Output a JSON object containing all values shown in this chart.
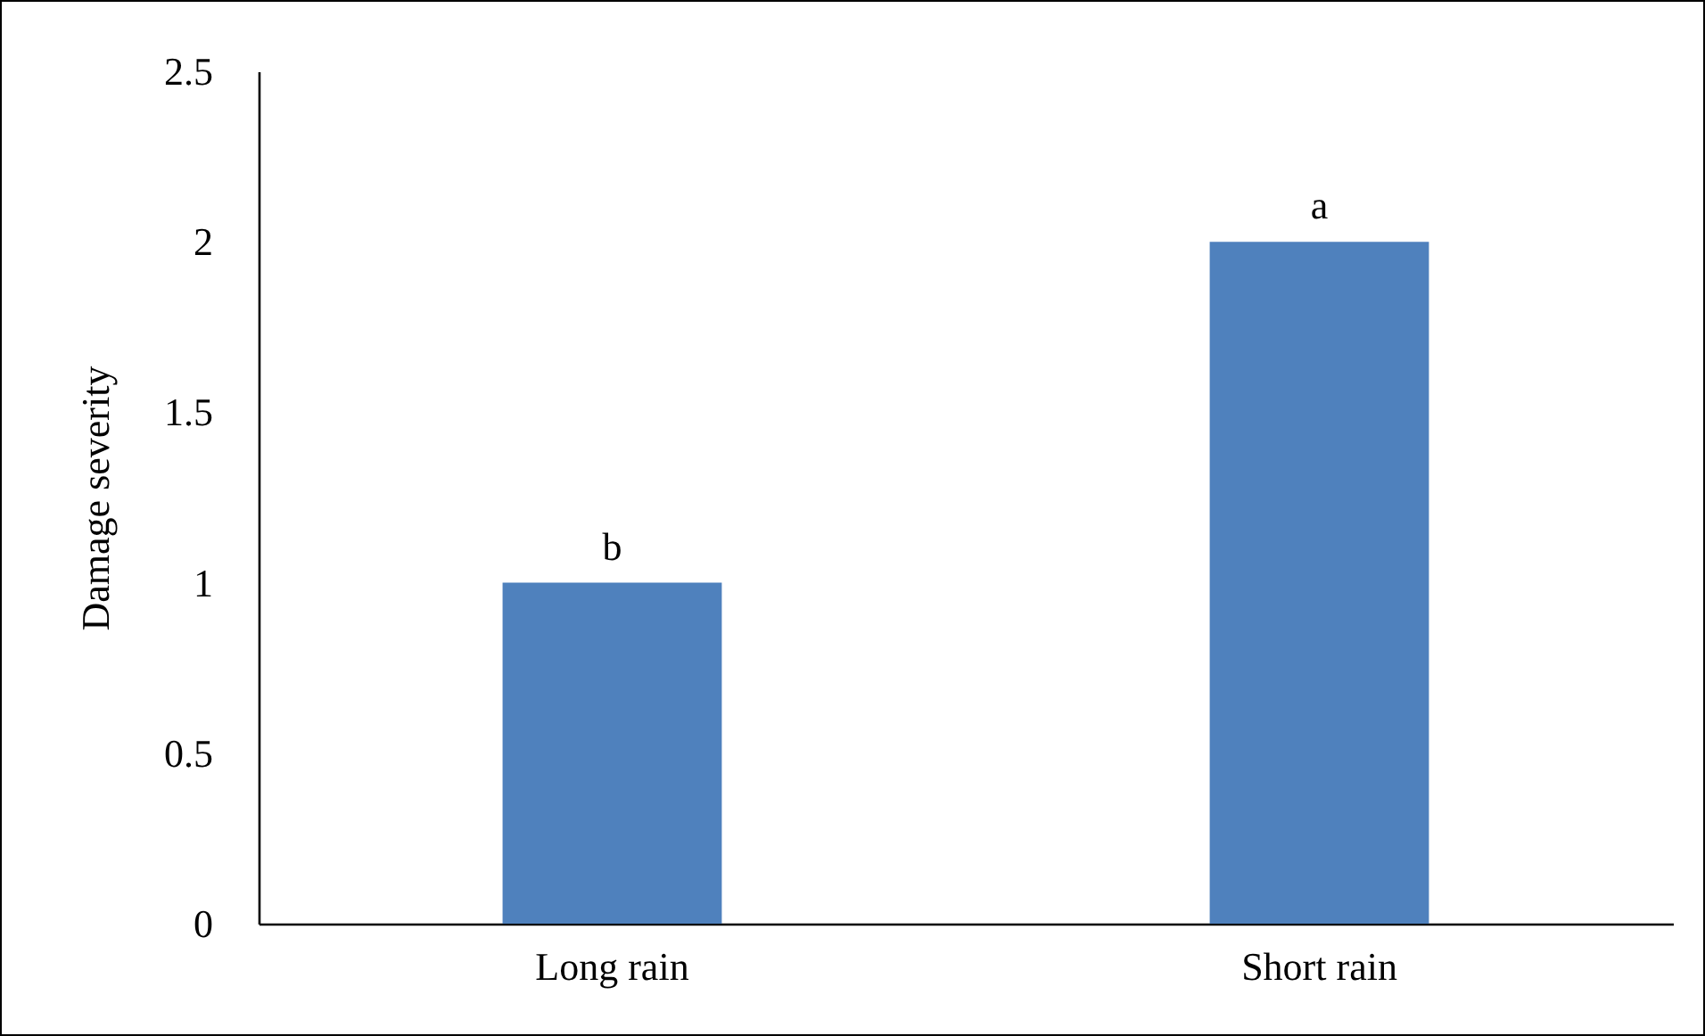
{
  "chart_data": {
    "type": "bar",
    "ylabel": "Damage severity",
    "categories": [
      "Long rain",
      "Short rain"
    ],
    "values": [
      1,
      2
    ],
    "color": "#4f81bd",
    "ylim": [
      0,
      2.5
    ],
    "yticks": [
      0,
      0.5,
      1,
      1.5,
      2,
      2.5
    ],
    "grid": false,
    "annotations": [
      {
        "text": "b",
        "x": "Long rain",
        "y": 1
      },
      {
        "text": "a",
        "x": "Short rain",
        "y": 2
      }
    ]
  }
}
